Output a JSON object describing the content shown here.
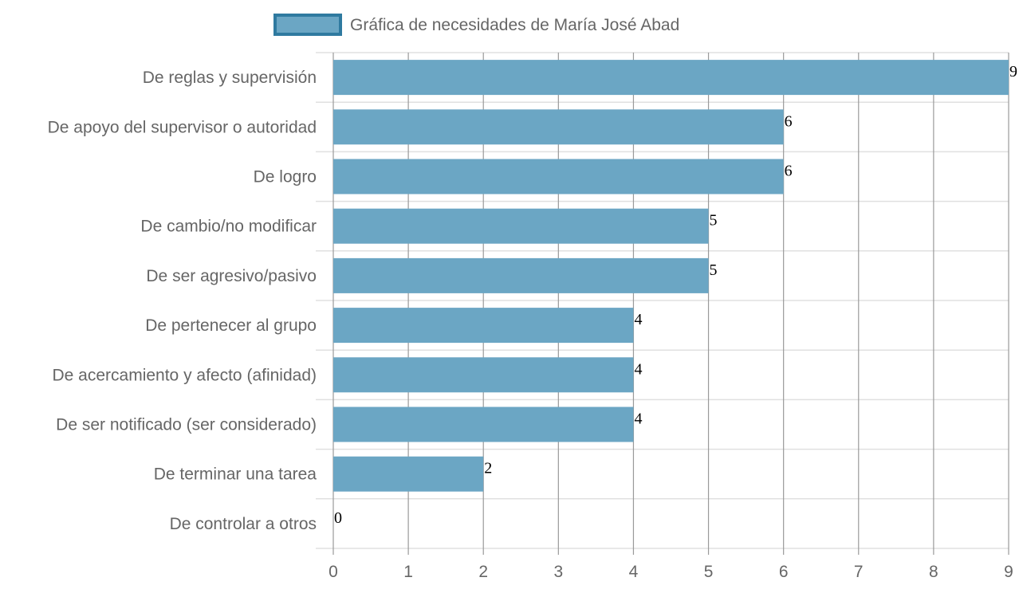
{
  "chart_data": {
    "type": "bar",
    "orientation": "horizontal",
    "categories": [
      "De reglas y supervisión",
      "De apoyo del supervisor o autoridad",
      "De logro",
      "De cambio/no modificar",
      "De ser agresivo/pasivo",
      "De pertenecer al grupo",
      "De acercamiento y afecto (afinidad)",
      "De ser notificado (ser considerado)",
      "De terminar una tarea",
      "De controlar a otros"
    ],
    "series": [
      {
        "name": "Gráfica de necesidades de María José Abad",
        "values": [
          9,
          6,
          6,
          5,
          5,
          4,
          4,
          4,
          2,
          0
        ]
      }
    ],
    "value_labels": [
      "9",
      "6",
      "6",
      "5",
      "5",
      "4",
      "4",
      "4",
      "2",
      "0"
    ],
    "x_ticks": [
      "0",
      "1",
      "2",
      "3",
      "4",
      "5",
      "6",
      "7",
      "8",
      "9"
    ],
    "xlim": [
      0,
      9
    ],
    "title": "",
    "xlabel": "",
    "ylabel": "",
    "grid": true,
    "legend_position": "top",
    "colors": {
      "bar_fill": "#6ba6c4",
      "bar_stroke": "#2f7aa0",
      "legend_fill": "#6ba6c4",
      "legend_stroke": "#2f7aa0",
      "grid_vertical": "#9a9a9a",
      "grid_horizontal": "#e0e0e0",
      "text": "#666666"
    }
  }
}
